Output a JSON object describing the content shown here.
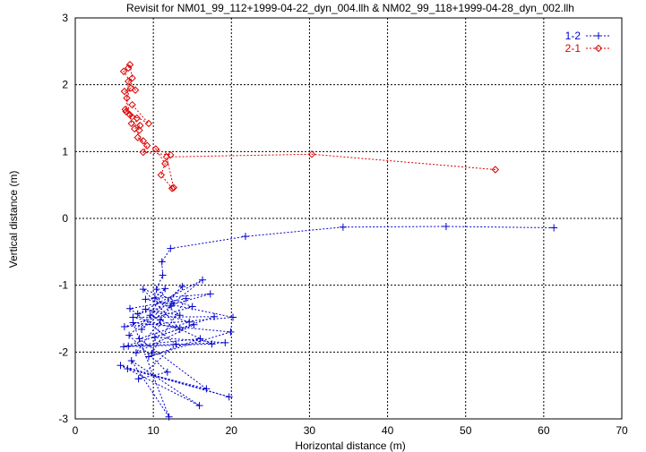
{
  "chart_data": {
    "type": "line",
    "title": "Revisit for NM01_99_112+1999-04-22_dyn_004.llh & NM02_99_118+1999-04-28_dyn_002.llh",
    "xlabel": "Horizontal distance (m)",
    "ylabel": "Vertical distance (m)",
    "xlim": [
      0,
      70
    ],
    "ylim": [
      -3,
      3
    ],
    "xticks": [
      0,
      10,
      20,
      30,
      40,
      50,
      60,
      70
    ],
    "yticks": [
      -3,
      -2,
      -1,
      0,
      1,
      2,
      3
    ],
    "grid": true,
    "legend_position": "top-right",
    "series": [
      {
        "name": "1-2",
        "color": "#0000cc",
        "marker": "plus",
        "points": [
          [
            61.3,
            -0.14
          ],
          [
            47.5,
            -0.12
          ],
          [
            34.3,
            -0.13
          ],
          [
            21.8,
            -0.27
          ],
          [
            12.2,
            -0.45
          ],
          [
            11.1,
            -0.65
          ],
          [
            11.2,
            -0.85
          ],
          [
            10.4,
            -1.06
          ],
          [
            12.5,
            -1.27
          ],
          [
            16.3,
            -0.92
          ],
          [
            8.0,
            -1.43
          ],
          [
            17.3,
            -1.13
          ],
          [
            9.0,
            -1.21
          ],
          [
            20.2,
            -1.48
          ],
          [
            6.3,
            -1.62
          ],
          [
            15.0,
            -1.32
          ],
          [
            8.7,
            -1.06
          ],
          [
            13.4,
            -1.66
          ],
          [
            7.4,
            -1.48
          ],
          [
            17.8,
            -1.47
          ],
          [
            10.2,
            -1.78
          ],
          [
            19.2,
            -1.86
          ],
          [
            6.8,
            -1.91
          ],
          [
            16.0,
            -1.8
          ],
          [
            9.4,
            -2.07
          ],
          [
            19.9,
            -1.7
          ],
          [
            7.4,
            -1.56
          ],
          [
            12.0,
            -2.97
          ],
          [
            7.2,
            -2.13
          ],
          [
            15.9,
            -2.8
          ],
          [
            5.8,
            -2.2
          ],
          [
            19.7,
            -2.67
          ],
          [
            6.7,
            -2.25
          ],
          [
            16.8,
            -2.55
          ],
          [
            8.2,
            -1.8
          ],
          [
            14.6,
            -1.55
          ],
          [
            9.0,
            -1.36
          ],
          [
            13.4,
            -1.45
          ],
          [
            10.2,
            -1.19
          ],
          [
            11.5,
            -1.05
          ],
          [
            9.6,
            -1.45
          ],
          [
            17.5,
            -1.88
          ],
          [
            6.2,
            -1.92
          ],
          [
            15.2,
            -1.59
          ],
          [
            7.8,
            -2.01
          ],
          [
            12.3,
            -1.31
          ],
          [
            8.5,
            -1.66
          ],
          [
            13.7,
            -1.02
          ],
          [
            6.9,
            -1.75
          ],
          [
            11.8,
            -2.3
          ],
          [
            8.1,
            -2.4
          ],
          [
            12.9,
            -1.88
          ],
          [
            7.0,
            -1.35
          ],
          [
            14.2,
            -1.2
          ],
          [
            9.8,
            -2.02
          ],
          [
            10.9,
            -1.52
          ]
        ]
      },
      {
        "name": "2-1",
        "color": "#dd0000",
        "marker": "diamond",
        "points": [
          [
            53.8,
            0.73
          ],
          [
            30.3,
            0.96
          ],
          [
            11.7,
            0.92
          ],
          [
            12.6,
            0.46
          ],
          [
            12.4,
            0.45
          ],
          [
            11.0,
            0.65
          ],
          [
            11.5,
            0.82
          ],
          [
            10.3,
            1.04
          ],
          [
            12.2,
            0.95
          ],
          [
            8.7,
            0.99
          ],
          [
            9.2,
            1.09
          ],
          [
            8.0,
            1.21
          ],
          [
            8.7,
            1.16
          ],
          [
            7.6,
            1.34
          ],
          [
            8.3,
            1.39
          ],
          [
            7.0,
            1.55
          ],
          [
            7.9,
            1.5
          ],
          [
            6.4,
            1.63
          ],
          [
            8.2,
            1.32
          ],
          [
            7.2,
            1.42
          ],
          [
            6.6,
            1.8
          ],
          [
            7.1,
            1.95
          ],
          [
            6.3,
            1.9
          ],
          [
            7.7,
            1.92
          ],
          [
            6.2,
            2.2
          ],
          [
            6.8,
            2.25
          ],
          [
            7.0,
            2.3
          ],
          [
            7.3,
            2.1
          ],
          [
            6.8,
            2.05
          ],
          [
            6.5,
            1.6
          ],
          [
            9.4,
            1.42
          ],
          [
            7.3,
            1.7
          ]
        ]
      }
    ]
  }
}
